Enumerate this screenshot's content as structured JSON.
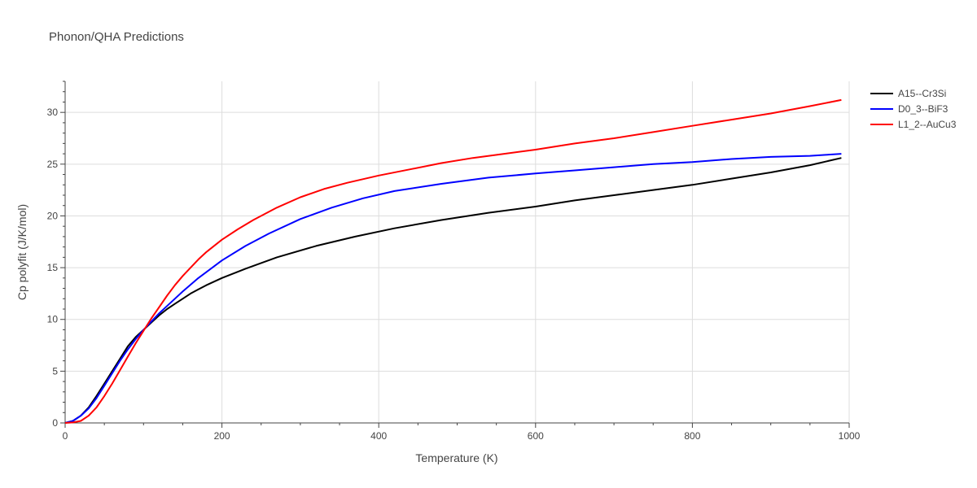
{
  "chart_data": {
    "type": "line",
    "title": "Phonon/QHA Predictions",
    "xlabel": "Temperature (K)",
    "ylabel": "Cp polyfit (J/K/mol)",
    "xlim": [
      0,
      1000
    ],
    "ylim": [
      0,
      33
    ],
    "xticks": [
      0,
      200,
      400,
      600,
      800,
      1000
    ],
    "yticks": [
      0,
      5,
      10,
      15,
      20,
      25,
      30
    ],
    "grid": true,
    "legend": "top-right",
    "series": [
      {
        "name": "A15--Cr3Si",
        "color": "#000000",
        "x": [
          0,
          10,
          20,
          30,
          40,
          50,
          60,
          70,
          80,
          90,
          100,
          110,
          120,
          130,
          140,
          150,
          160,
          170,
          180,
          200,
          230,
          270,
          320,
          370,
          420,
          480,
          540,
          600,
          650,
          700,
          750,
          800,
          850,
          900,
          950,
          990
        ],
        "y": [
          0,
          0.2,
          0.7,
          1.5,
          2.6,
          3.8,
          5.0,
          6.2,
          7.4,
          8.3,
          9.0,
          9.7,
          10.4,
          11.0,
          11.5,
          12.0,
          12.5,
          12.9,
          13.3,
          14.0,
          14.9,
          16.0,
          17.1,
          18.0,
          18.8,
          19.6,
          20.3,
          20.9,
          21.5,
          22.0,
          22.5,
          23.0,
          23.6,
          24.2,
          24.9,
          25.6
        ]
      },
      {
        "name": "D0_3--BiF3",
        "color": "#0000ff",
        "x": [
          0,
          10,
          20,
          30,
          40,
          50,
          60,
          70,
          80,
          90,
          100,
          110,
          120,
          130,
          140,
          150,
          170,
          200,
          230,
          260,
          300,
          340,
          380,
          420,
          480,
          540,
          600,
          650,
          700,
          750,
          800,
          850,
          900,
          950,
          970,
          990
        ],
        "y": [
          0,
          0.2,
          0.7,
          1.4,
          2.4,
          3.6,
          4.8,
          6.0,
          7.1,
          8.1,
          9.0,
          9.8,
          10.6,
          11.3,
          12.0,
          12.7,
          14.0,
          15.7,
          17.1,
          18.3,
          19.7,
          20.8,
          21.7,
          22.4,
          23.1,
          23.7,
          24.1,
          24.4,
          24.7,
          25.0,
          25.2,
          25.5,
          25.7,
          25.8,
          25.9,
          26.0
        ]
      },
      {
        "name": "L1_2--AuCu3",
        "color": "#ff0000",
        "x": [
          0,
          10,
          20,
          30,
          40,
          50,
          60,
          70,
          80,
          90,
          100,
          110,
          120,
          130,
          140,
          150,
          160,
          170,
          180,
          200,
          220,
          240,
          270,
          300,
          330,
          360,
          400,
          440,
          480,
          520,
          560,
          600,
          650,
          700,
          750,
          800,
          850,
          900,
          950,
          990
        ],
        "y": [
          0,
          0.05,
          0.2,
          0.7,
          1.5,
          2.6,
          3.8,
          5.1,
          6.4,
          7.7,
          8.9,
          10.1,
          11.2,
          12.3,
          13.3,
          14.2,
          15.0,
          15.8,
          16.5,
          17.7,
          18.7,
          19.6,
          20.8,
          21.8,
          22.6,
          23.2,
          23.9,
          24.5,
          25.1,
          25.6,
          26.0,
          26.4,
          27.0,
          27.5,
          28.1,
          28.7,
          29.3,
          29.9,
          30.6,
          31.2
        ]
      }
    ]
  }
}
